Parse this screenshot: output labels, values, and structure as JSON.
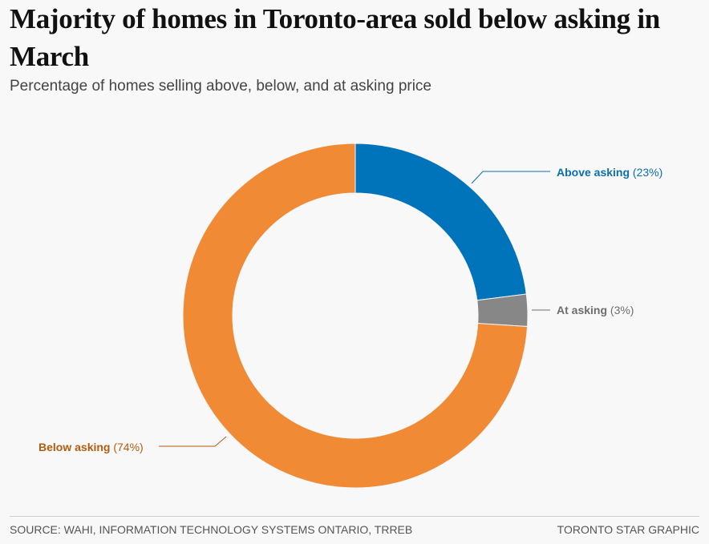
{
  "header": {
    "title": "Majority of homes in Toronto-area sold below asking in March",
    "subtitle": "Percentage of homes selling above, below, and at asking price"
  },
  "footer": {
    "source": "SOURCE: WAHI, INFORMATION TECHNOLOGY SYSTEMS ONTARIO, TRREB",
    "credit": "TORONTO STAR GRAPHIC"
  },
  "chart_data": {
    "type": "pie",
    "variant": "donut",
    "title": "Majority of homes in Toronto-area sold below asking in March",
    "subtitle": "Percentage of homes selling above, below, and at asking price",
    "unit": "%",
    "slices": [
      {
        "label": "Above asking",
        "value": 23,
        "value_text": "(23%)",
        "color": "#0074bb",
        "label_color": "#0a6fb0"
      },
      {
        "label": "At asking",
        "value": 3,
        "value_text": "(3%)",
        "color": "#878787",
        "label_color": "#6e6e6e"
      },
      {
        "label": "Below asking",
        "value": 74,
        "value_text": "(74%)",
        "color": "#f08a35",
        "label_color": "#b25c0e"
      }
    ]
  }
}
